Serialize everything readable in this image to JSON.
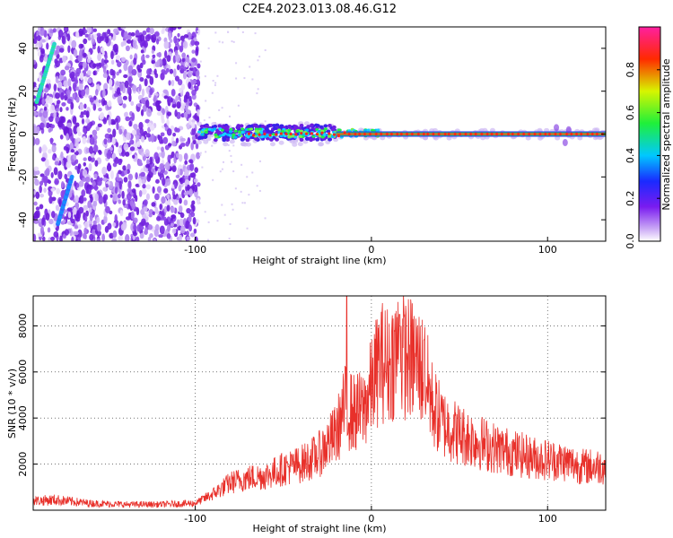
{
  "title": "C2E4.2023.013.08.46.G12",
  "colors": {
    "snr_line": "#e8302a",
    "track": "#2bd3c9",
    "noise": "#7a2fe0"
  },
  "chart_data": [
    {
      "type": "heatmap",
      "xlabel": "Height of straight line (km)",
      "ylabel": "Frequency (Hz)",
      "xlim": [
        -192,
        133
      ],
      "ylim": [
        -50,
        50
      ],
      "xticks": [
        -100,
        0,
        100
      ],
      "yticks": [
        -40,
        -20,
        0,
        20,
        40
      ],
      "colorbar": {
        "label": "Normalized spectral amplitude",
        "range": [
          0,
          1
        ],
        "ticks": [
          0.0,
          0.2,
          0.4,
          0.6,
          0.8
        ],
        "tick_labels": [
          "0.0",
          "0.2",
          "0.4",
          "0.6",
          "0.8"
        ],
        "colormap": "hsv-rainbow (white to purple to blue to cyan to green to yellow to red to magenta)"
      },
      "features": {
        "noise_region_x": [
          -192,
          -98
        ],
        "signal_line_freq_hz": 0,
        "signal_line_x": [
          -98,
          133
        ],
        "diagonal_tracks": [
          {
            "x": [
              -190,
              -180
            ],
            "y": [
              15,
              42
            ]
          },
          {
            "x": [
              -178,
              -170
            ],
            "y": [
              -42,
              -20
            ]
          }
        ]
      }
    },
    {
      "type": "line",
      "xlabel": "Height of straight line (km)",
      "ylabel": "SNR (10 * v/v)",
      "xlim": [
        -192,
        133
      ],
      "ylim": [
        0,
        9300
      ],
      "xticks": [
        -100,
        0,
        100
      ],
      "yticks": [
        2000,
        4000,
        6000,
        8000
      ],
      "grid": true,
      "series": [
        {
          "x": [
            -192,
            -180,
            -160,
            -140,
            -120,
            -100,
            -90,
            -80,
            -70,
            -60,
            -50,
            -40,
            -30,
            -20,
            -15,
            -10,
            -5,
            0,
            5,
            10,
            15,
            20,
            25,
            30,
            35,
            40,
            50,
            60,
            70,
            80,
            90,
            100,
            110,
            120,
            133
          ],
          "values": [
            400,
            450,
            300,
            250,
            250,
            300,
            700,
            1200,
            1400,
            1500,
            1800,
            2000,
            2400,
            3300,
            4500,
            4200,
            4300,
            5300,
            6500,
            6300,
            7000,
            6600,
            6500,
            6000,
            4500,
            3800,
            3300,
            3000,
            2700,
            2500,
            2300,
            2200,
            2100,
            1900,
            1900
          ],
          "peaks": [
            {
              "x": -14,
              "y": 9300
            },
            {
              "x": 16,
              "y": 8500
            },
            {
              "x": 30,
              "y": 7400
            }
          ]
        }
      ]
    }
  ]
}
